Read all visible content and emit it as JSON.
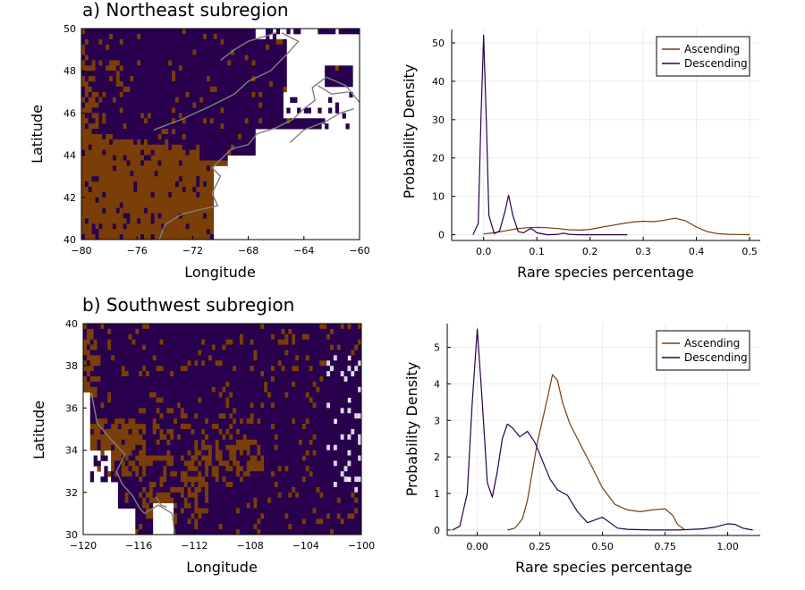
{
  "chart_data": [
    {
      "type": "heatmap",
      "title": "a) Northeast subregion",
      "xlabel": "Longitude",
      "ylabel": "Latitude",
      "xlim": [
        -80,
        -60
      ],
      "ylim": [
        40,
        50
      ],
      "xticks": [
        "−80",
        "−76",
        "−72",
        "−68",
        "−64",
        "−60"
      ],
      "yticks": [
        "40",
        "42",
        "44",
        "46",
        "48",
        "50"
      ],
      "colors": {
        "ascending": "#7a3e07",
        "descending": "#28004d",
        "missing": "#ffffff",
        "coast": "#808080"
      }
    },
    {
      "type": "line",
      "xlabel": "Rare species percentage",
      "ylabel": "Probability Density",
      "xlim": [
        -0.06,
        0.52
      ],
      "ylim": [
        -1.5,
        53.5
      ],
      "xticks": [
        "0.0",
        "0.1",
        "0.2",
        "0.3",
        "0.4",
        "0.5"
      ],
      "yticks": [
        "0",
        "10",
        "20",
        "30",
        "40",
        "50"
      ],
      "legend_position": "top-right",
      "grid": true,
      "series": [
        {
          "name": "Ascending",
          "color": "#7a3e07",
          "x": [
            0.0,
            0.02,
            0.04,
            0.06,
            0.08,
            0.1,
            0.12,
            0.14,
            0.16,
            0.18,
            0.2,
            0.22,
            0.24,
            0.26,
            0.28,
            0.3,
            0.32,
            0.34,
            0.36,
            0.38,
            0.4,
            0.42,
            0.44,
            0.46,
            0.48,
            0.5
          ],
          "y": [
            0.2,
            0.5,
            1.0,
            1.5,
            1.8,
            1.9,
            1.8,
            1.6,
            1.3,
            1.2,
            1.4,
            1.9,
            2.4,
            2.9,
            3.3,
            3.5,
            3.4,
            3.8,
            4.3,
            3.6,
            2.0,
            0.8,
            0.3,
            0.1,
            0.05,
            0.0
          ]
        },
        {
          "name": "Descending",
          "color": "#28004d",
          "x": [
            -0.02,
            -0.01,
            -0.005,
            0.0,
            0.005,
            0.01,
            0.02,
            0.03,
            0.04,
            0.047,
            0.055,
            0.065,
            0.075,
            0.085,
            0.09,
            0.1,
            0.12,
            0.14,
            0.15,
            0.16,
            0.18,
            0.2,
            0.22,
            0.24,
            0.26,
            0.27
          ],
          "y": [
            0.0,
            3.0,
            30.0,
            52.0,
            30.0,
            5.0,
            0.3,
            1.0,
            6.0,
            10.3,
            5.0,
            0.8,
            0.5,
            1.4,
            1.6,
            0.5,
            0.0,
            0.1,
            0.4,
            0.1,
            0.0,
            0.0,
            0.0,
            0.0,
            0.0,
            0.0
          ]
        }
      ]
    },
    {
      "type": "heatmap",
      "title": "b) Southwest subregion",
      "xlabel": "Longitude",
      "ylabel": "Latitude",
      "xlim": [
        -120,
        -100
      ],
      "ylim": [
        30,
        40
      ],
      "xticks": [
        "−120",
        "−116",
        "−112",
        "−108",
        "−104",
        "−100"
      ],
      "yticks": [
        "30",
        "32",
        "34",
        "36",
        "38",
        "40"
      ],
      "colors": {
        "ascending": "#7a3e07",
        "descending": "#28004d",
        "missing": "#ffffff",
        "missing_light": "#d9d9e6",
        "coast": "#808080"
      }
    },
    {
      "type": "line",
      "xlabel": "Rare species percentage",
      "ylabel": "Probability Density",
      "xlim": [
        -0.12,
        1.13
      ],
      "ylim": [
        -0.15,
        5.65
      ],
      "xticks": [
        "0.00",
        "0.25",
        "0.50",
        "0.75",
        "1.00"
      ],
      "yticks": [
        "0",
        "1",
        "2",
        "3",
        "4",
        "5"
      ],
      "legend_position": "top-right",
      "grid": true,
      "series": [
        {
          "name": "Ascending",
          "color": "#7a3e07",
          "x": [
            0.12,
            0.15,
            0.18,
            0.2,
            0.22,
            0.24,
            0.26,
            0.28,
            0.3,
            0.32,
            0.34,
            0.37,
            0.4,
            0.43,
            0.46,
            0.5,
            0.55,
            0.6,
            0.65,
            0.7,
            0.75,
            0.78,
            0.8,
            0.83
          ],
          "y": [
            0.0,
            0.05,
            0.3,
            0.8,
            1.6,
            2.4,
            3.0,
            3.6,
            4.25,
            4.1,
            3.5,
            2.9,
            2.5,
            2.1,
            1.7,
            1.15,
            0.7,
            0.55,
            0.5,
            0.55,
            0.58,
            0.4,
            0.15,
            0.0
          ]
        },
        {
          "name": "Descending",
          "color": "#28004d",
          "x": [
            -0.1,
            -0.07,
            -0.04,
            -0.02,
            0.0,
            0.02,
            0.04,
            0.06,
            0.08,
            0.1,
            0.12,
            0.14,
            0.17,
            0.2,
            0.23,
            0.26,
            0.29,
            0.32,
            0.36,
            0.4,
            0.44,
            0.48,
            0.5,
            0.53,
            0.56,
            0.6,
            0.7,
            0.8,
            0.9,
            0.95,
            1.0,
            1.03,
            1.06,
            1.1
          ],
          "y": [
            0.0,
            0.1,
            1.0,
            3.5,
            5.5,
            3.5,
            1.3,
            0.9,
            1.6,
            2.5,
            2.9,
            2.8,
            2.55,
            2.7,
            2.4,
            1.9,
            1.4,
            1.1,
            0.95,
            0.5,
            0.2,
            0.3,
            0.35,
            0.2,
            0.05,
            0.02,
            0.0,
            0.0,
            0.03,
            0.08,
            0.17,
            0.15,
            0.05,
            0.0
          ]
        }
      ]
    }
  ]
}
